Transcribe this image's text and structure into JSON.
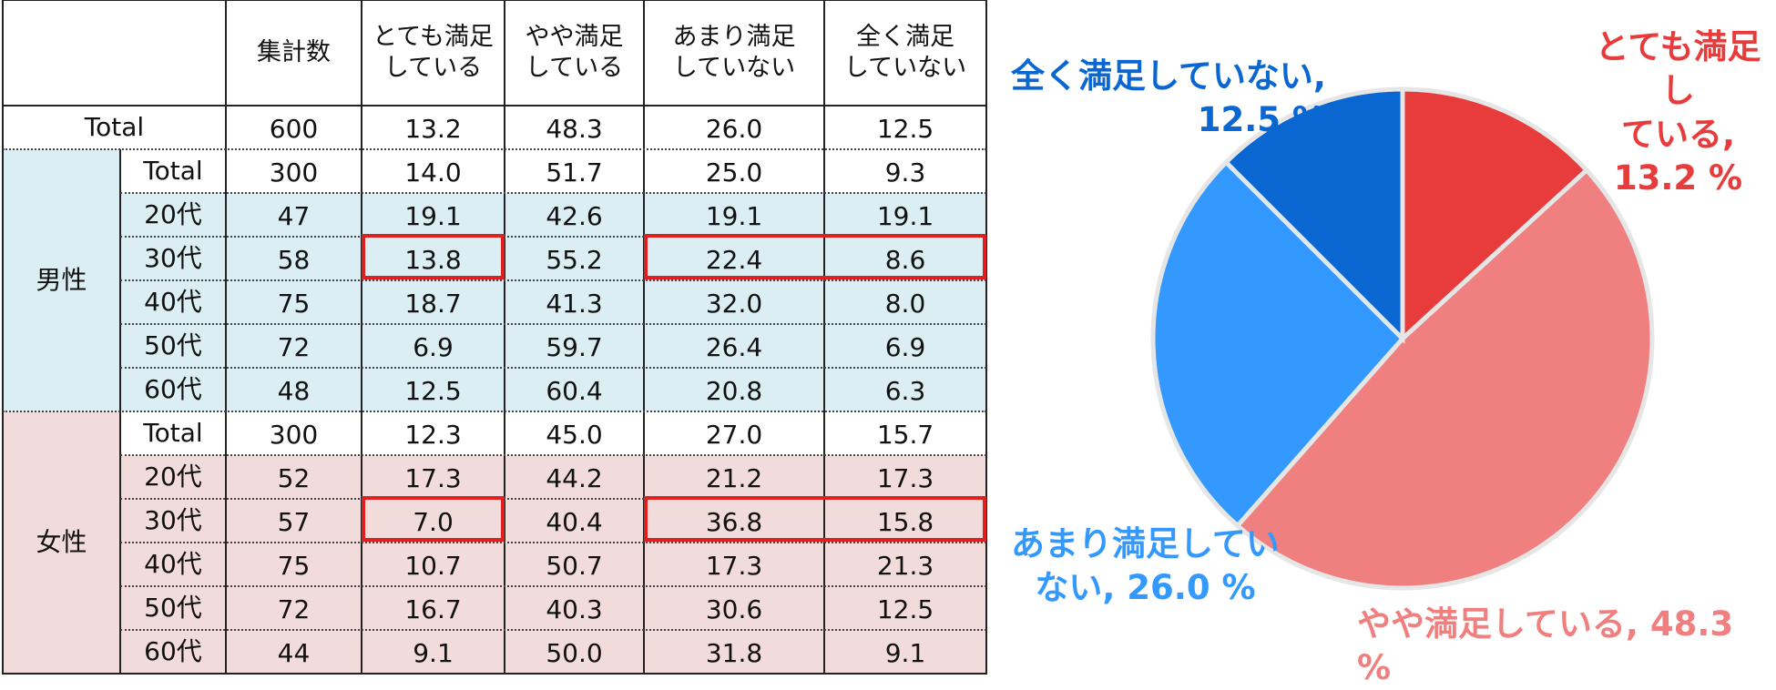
{
  "table": {
    "headers": [
      "集計数",
      "とても満足\nしている",
      "やや満足\nしている",
      "あまり満足\nしていない",
      "全く満足\nしていない"
    ],
    "rows": [
      {
        "segment": "",
        "label": "Total",
        "values": [
          "600",
          "13.2",
          "48.3",
          "26.0",
          "12.5"
        ]
      },
      {
        "segment": "男性",
        "label": "Total",
        "values": [
          "300",
          "14.0",
          "51.7",
          "25.0",
          "9.3"
        ]
      },
      {
        "segment": "男性",
        "label": "20代",
        "values": [
          "47",
          "19.1",
          "42.6",
          "19.1",
          "19.1"
        ]
      },
      {
        "segment": "男性",
        "label": "30代",
        "values": [
          "58",
          "13.8",
          "55.2",
          "22.4",
          "8.6"
        ]
      },
      {
        "segment": "男性",
        "label": "40代",
        "values": [
          "75",
          "18.7",
          "41.3",
          "32.0",
          "8.0"
        ]
      },
      {
        "segment": "男性",
        "label": "50代",
        "values": [
          "72",
          "6.9",
          "59.7",
          "26.4",
          "6.9"
        ]
      },
      {
        "segment": "男性",
        "label": "60代",
        "values": [
          "48",
          "12.5",
          "60.4",
          "20.8",
          "6.3"
        ]
      },
      {
        "segment": "女性",
        "label": "Total",
        "values": [
          "300",
          "12.3",
          "45.0",
          "27.0",
          "15.7"
        ]
      },
      {
        "segment": "女性",
        "label": "20代",
        "values": [
          "52",
          "17.3",
          "44.2",
          "21.2",
          "17.3"
        ]
      },
      {
        "segment": "女性",
        "label": "30代",
        "values": [
          "57",
          "7.0",
          "40.4",
          "36.8",
          "15.8"
        ]
      },
      {
        "segment": "女性",
        "label": "40代",
        "values": [
          "75",
          "10.7",
          "50.7",
          "17.3",
          "21.3"
        ]
      },
      {
        "segment": "女性",
        "label": "50代",
        "values": [
          "72",
          "16.7",
          "40.3",
          "30.6",
          "12.5"
        ]
      },
      {
        "segment": "女性",
        "label": "60代",
        "values": [
          "44",
          "9.1",
          "50.0",
          "31.8",
          "9.1"
        ]
      }
    ],
    "segments": {
      "male": "男性",
      "female": "女性"
    },
    "colors": {
      "male_band": "#dbeef3",
      "female_band": "#f2dcdb",
      "highlight": "#e02020"
    }
  },
  "chart_data": {
    "type": "pie",
    "slices": [
      {
        "label": "とても満足している",
        "value": 13.2,
        "color": "#e83c3c",
        "display": "とても満足し\nている,\n13.2 %"
      },
      {
        "label": "やや満足している",
        "value": 48.3,
        "color": "#f08080",
        "display": "やや満足している, 48.3 %"
      },
      {
        "label": "あまり満足していない",
        "value": 26.0,
        "color": "#3399ff",
        "display": "あまり満足してい\nない, 26.0 %"
      },
      {
        "label": "全く満足していない",
        "value": 12.5,
        "color": "#0a66d0",
        "display": "全く満足していない,\n12.5 %"
      }
    ]
  }
}
